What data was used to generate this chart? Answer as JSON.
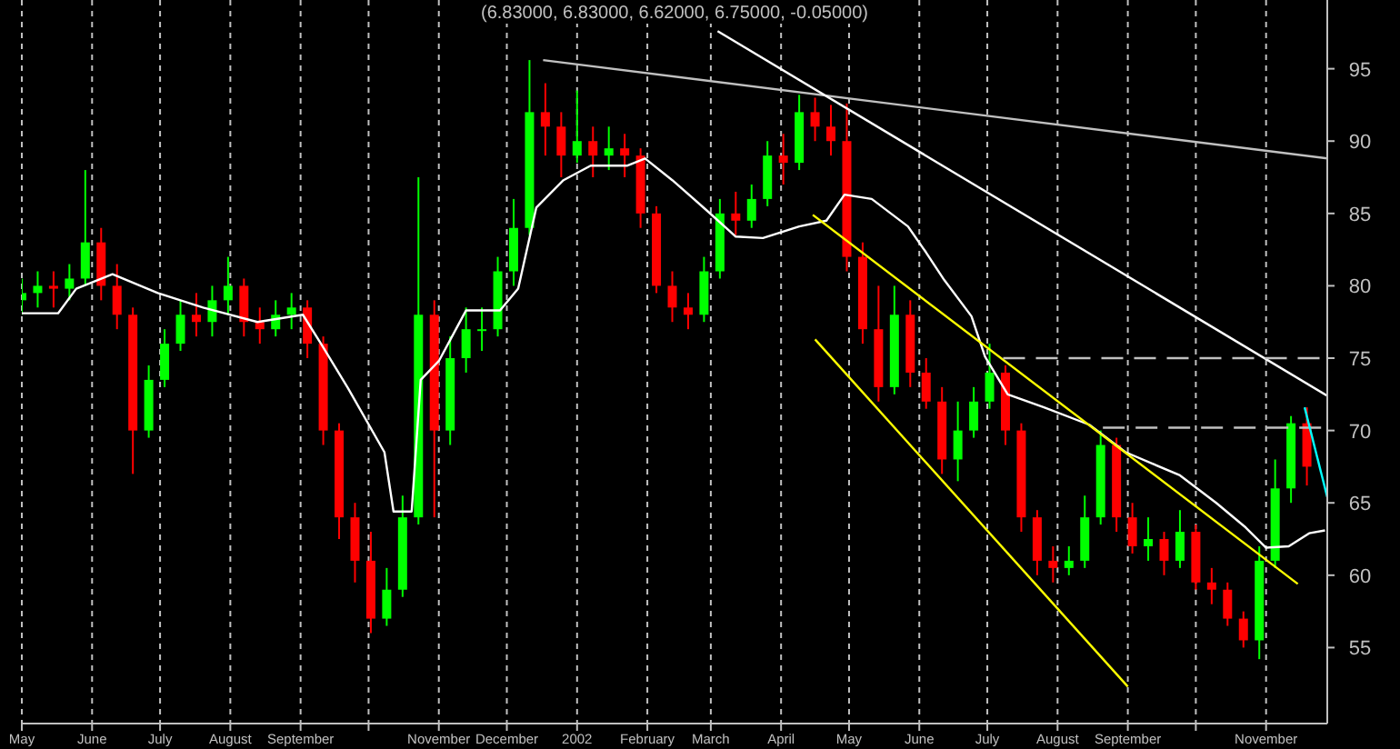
{
  "chart_data": {
    "type": "candlestick",
    "title": "(6.83000, 6.83000, 6.62000, 6.75000, -0.05000)",
    "x": [
      "2001-05-01",
      "2001-05-08",
      "2001-05-15",
      "2001-05-22",
      "2001-05-29",
      "2001-06-05",
      "2001-06-12",
      "2001-06-19",
      "2001-06-26",
      "2001-07-03",
      "2001-07-10",
      "2001-07-17",
      "2001-07-24",
      "2001-07-31",
      "2001-08-07",
      "2001-08-14",
      "2001-08-21",
      "2001-08-28",
      "2001-09-04",
      "2001-09-11",
      "2001-09-18",
      "2001-09-25",
      "2001-10-02",
      "2001-10-09",
      "2001-10-16",
      "2001-10-23",
      "2001-10-30",
      "2001-11-06",
      "2001-11-13",
      "2001-11-20",
      "2001-11-27",
      "2001-12-04",
      "2001-12-11",
      "2001-12-18",
      "2001-12-25",
      "2002-01-01",
      "2002-01-08",
      "2002-01-15",
      "2002-01-22",
      "2002-01-29",
      "2002-02-05",
      "2002-02-12",
      "2002-02-19",
      "2002-02-26",
      "2002-03-05",
      "2002-03-12",
      "2002-03-19",
      "2002-03-26",
      "2002-04-02",
      "2002-04-09",
      "2002-04-16",
      "2002-04-23",
      "2002-04-30",
      "2002-05-07",
      "2002-05-14",
      "2002-05-21",
      "2002-05-28",
      "2002-06-04",
      "2002-06-11",
      "2002-06-18",
      "2002-06-25",
      "2002-07-02",
      "2002-07-09",
      "2002-07-16",
      "2002-07-23",
      "2002-07-30",
      "2002-08-06",
      "2002-08-13",
      "2002-08-20",
      "2002-08-27",
      "2002-09-03",
      "2002-09-10",
      "2002-09-17",
      "2002-09-24",
      "2002-10-01",
      "2002-10-08",
      "2002-10-15",
      "2002-10-22",
      "2002-10-29",
      "2002-11-05",
      "2002-11-12",
      "2002-11-19"
    ],
    "ohlc": [
      [
        79,
        80.5,
        78,
        79.5
      ],
      [
        79.5,
        81,
        78.5,
        80
      ],
      [
        80,
        81,
        78.5,
        79.8
      ],
      [
        79.8,
        81.5,
        79,
        80.5
      ],
      [
        80.5,
        88,
        80,
        83
      ],
      [
        83,
        84,
        79,
        80
      ],
      [
        80,
        81.5,
        77,
        78
      ],
      [
        78,
        78.5,
        67,
        70
      ],
      [
        70,
        74.5,
        69.5,
        73.5
      ],
      [
        73.5,
        77,
        73,
        76
      ],
      [
        76,
        79,
        75.5,
        78
      ],
      [
        78,
        79.5,
        76.5,
        77.5
      ],
      [
        77.5,
        80,
        76.5,
        79
      ],
      [
        79,
        82,
        78,
        80
      ],
      [
        80,
        80.5,
        76.5,
        77.5
      ],
      [
        77.5,
        78.5,
        76,
        77
      ],
      [
        77,
        79,
        76.5,
        78
      ],
      [
        78,
        79.5,
        77,
        78.5
      ],
      [
        78.5,
        79,
        75,
        76
      ],
      [
        76,
        76.5,
        69,
        70
      ],
      [
        70,
        70.5,
        62.5,
        64
      ],
      [
        64,
        65,
        59.5,
        61
      ],
      [
        61,
        63,
        56,
        57
      ],
      [
        57,
        60.5,
        56.5,
        59
      ],
      [
        59,
        65.5,
        58.5,
        64
      ],
      [
        64,
        87.5,
        63.5,
        78
      ],
      [
        78,
        79,
        64,
        70
      ],
      [
        70,
        76.5,
        69,
        75
      ],
      [
        75,
        78.5,
        74,
        77
      ],
      [
        77,
        78.5,
        75.5,
        77
      ],
      [
        77,
        82,
        76.5,
        81
      ],
      [
        81,
        86,
        80,
        84
      ],
      [
        84,
        95.6,
        83.5,
        92
      ],
      [
        92,
        94,
        89,
        91
      ],
      [
        91,
        92,
        87.5,
        89
      ],
      [
        89,
        93.5,
        88.5,
        90
      ],
      [
        90,
        91,
        87.5,
        89
      ],
      [
        89,
        91,
        88,
        89.5
      ],
      [
        89.5,
        90.5,
        87.5,
        89
      ],
      [
        89,
        89.5,
        84,
        85
      ],
      [
        85,
        85.5,
        79.5,
        80
      ],
      [
        80,
        81,
        77.5,
        78.5
      ],
      [
        78.5,
        79.5,
        77,
        78
      ],
      [
        78,
        82,
        77.5,
        81
      ],
      [
        81,
        86,
        80.5,
        85
      ],
      [
        85,
        86.5,
        83.5,
        84.5
      ],
      [
        84.5,
        87,
        84,
        86
      ],
      [
        86,
        90,
        85.5,
        89
      ],
      [
        89,
        90.5,
        87,
        88.5
      ],
      [
        88.5,
        93.2,
        88,
        92
      ],
      [
        92,
        93,
        90,
        91
      ],
      [
        91,
        92.5,
        89,
        90
      ],
      [
        90,
        92.6,
        81,
        82
      ],
      [
        82,
        83,
        76,
        77
      ],
      [
        77,
        80,
        72,
        73
      ],
      [
        73,
        80,
        72.5,
        78
      ],
      [
        78,
        79,
        73,
        74
      ],
      [
        74,
        75,
        71.5,
        72
      ],
      [
        72,
        73,
        67,
        68
      ],
      [
        68,
        72,
        66.5,
        70
      ],
      [
        70,
        73,
        69.5,
        72
      ],
      [
        72,
        76,
        71.5,
        74
      ],
      [
        74,
        74.5,
        69,
        70
      ],
      [
        70,
        70.5,
        63,
        64
      ],
      [
        64,
        64.5,
        60,
        61
      ],
      [
        61,
        62,
        59.5,
        60.5
      ],
      [
        60.5,
        62,
        60,
        61
      ],
      [
        61,
        65.5,
        60.5,
        64
      ],
      [
        64,
        70,
        63.5,
        69
      ],
      [
        69,
        69.5,
        63,
        64
      ],
      [
        64,
        65,
        61.5,
        62
      ],
      [
        62,
        64,
        61,
        62.5
      ],
      [
        62.5,
        63,
        60,
        61
      ],
      [
        61,
        64.5,
        60.5,
        63
      ],
      [
        63,
        63.5,
        59,
        59.5
      ],
      [
        59.5,
        60.5,
        58,
        59
      ],
      [
        59,
        59.5,
        56.5,
        57
      ],
      [
        57,
        57.5,
        55,
        55.5
      ],
      [
        55.5,
        62,
        54.2,
        61
      ],
      [
        61,
        68,
        60.5,
        66
      ],
      [
        66,
        71,
        65,
        70.5
      ],
      [
        70.5,
        71.6,
        66.2,
        67.5
      ]
    ],
    "colors": [
      "#00ff00",
      "#00ff00",
      "#ff0000",
      "#00ff00",
      "#00ff00",
      "#ff0000",
      "#ff0000",
      "#ff0000",
      "#00ff00",
      "#00ff00",
      "#00ff00",
      "#ff0000",
      "#00ff00",
      "#00ff00",
      "#ff0000",
      "#ff0000",
      "#00ff00",
      "#00ff00",
      "#ff0000",
      "#ff0000",
      "#ff0000",
      "#ff0000",
      "#ff0000",
      "#00ff00",
      "#00ff00",
      "#00ff00",
      "#ff0000",
      "#00ff00",
      "#00ff00",
      "#00ff00",
      "#00ff00",
      "#00ff00",
      "#00ff00",
      "#ff0000",
      "#ff0000",
      "#00ff00",
      "#ff0000",
      "#00ff00",
      "#ff0000",
      "#ff0000",
      "#ff0000",
      "#ff0000",
      "#ff0000",
      "#00ff00",
      "#00ff00",
      "#ff0000",
      "#00ff00",
      "#00ff00",
      "#ff0000",
      "#00ff00",
      "#ff0000",
      "#ff0000",
      "#ff0000",
      "#ff0000",
      "#ff0000",
      "#00ff00",
      "#ff0000",
      "#ff0000",
      "#ff0000",
      "#00ff00",
      "#00ff00",
      "#00ff00",
      "#ff0000",
      "#ff0000",
      "#ff0000",
      "#ff0000",
      "#00ff00",
      "#00ff00",
      "#00ff00",
      "#ff0000",
      "#ff0000",
      "#00ff00",
      "#ff0000",
      "#00ff00",
      "#ff0000",
      "#ff0000",
      "#ff0000",
      "#ff0000",
      "#00ff00",
      "#00ff00",
      "#00ff00",
      "#ff0000"
    ],
    "series": [
      {
        "type": "line",
        "color": "#ffffff",
        "x": [
          "2001-05-01",
          "2001-05-17",
          "2001-05-25",
          "2001-06-10",
          "2001-06-30",
          "2001-07-20",
          "2001-08-13",
          "2001-09-02",
          "2001-09-10",
          "2001-09-22",
          "2001-10-08",
          "2001-10-12",
          "2001-10-20",
          "2001-10-24",
          "2001-11-01",
          "2001-11-13",
          "2001-11-28",
          "2001-12-06",
          "2001-12-14",
          "2001-12-26",
          "2002-01-07",
          "2002-01-23",
          "2002-01-31",
          "2002-02-12",
          "2002-02-28",
          "2002-03-12",
          "2002-03-24",
          "2002-04-09",
          "2002-04-21",
          "2002-04-29",
          "2002-05-11",
          "2002-05-27",
          "2002-06-04",
          "2002-06-12",
          "2002-06-24",
          "2002-06-30",
          "2002-07-10",
          "2002-07-26",
          "2002-08-15",
          "2002-08-31",
          "2002-09-24",
          "2002-10-10",
          "2002-10-23",
          "2002-11-01",
          "2002-11-11",
          "2002-11-20",
          "2002-11-27"
        ],
        "values": [
          78.1,
          78.1,
          79.8,
          80.8,
          79.5,
          78.5,
          77.5,
          78,
          76,
          72.9,
          68.5,
          64.4,
          64.4,
          73.5,
          74.8,
          78.3,
          78.3,
          79.8,
          85.4,
          87.3,
          88.3,
          88.3,
          88.8,
          87.3,
          85.1,
          83.4,
          83.3,
          84.1,
          84.5,
          86.3,
          86,
          84.1,
          82.3,
          80.4,
          77.9,
          75.1,
          72.5,
          71.6,
          70.4,
          68.5,
          66.9,
          65,
          63.3,
          61.9,
          62,
          62.9,
          63.1
        ]
      },
      {
        "type": "line",
        "color": "#c0c0c0",
        "x": [
          "2001-12-17",
          "2002-11-28"
        ],
        "values": [
          95.6,
          88.8
        ]
      },
      {
        "type": "line",
        "color": "#ffffff",
        "x": [
          "2002-03-04",
          "2002-11-28"
        ],
        "values": [
          97.6,
          72.4
        ]
      },
      {
        "type": "line",
        "color": "#ffff00",
        "x": [
          "2002-04-15",
          "2002-11-15"
        ],
        "values": [
          84.9,
          59.4
        ]
      },
      {
        "type": "line",
        "color": "#ffff00",
        "x": [
          "2002-04-16",
          "2002-09-01"
        ],
        "values": [
          76.3,
          52.3
        ]
      },
      {
        "type": "line",
        "color": "#c0c0c0",
        "line_style": "dashed",
        "x": [
          "2002-07-08",
          "2002-11-28"
        ],
        "values": [
          75,
          75
        ]
      },
      {
        "type": "line",
        "color": "#c0c0c0",
        "line_style": "dashed",
        "x": [
          "2002-08-21",
          "2002-11-28"
        ],
        "values": [
          70.2,
          70.2
        ]
      },
      {
        "type": "line",
        "color": "#00ffff",
        "x": [
          "2002-11-18",
          "2002-11-28"
        ],
        "values": [
          71.6,
          65.4
        ]
      }
    ],
    "xlim": [
      "2001-05-01",
      "2002-11-28"
    ],
    "xticks": [
      {
        "value": "2001-05-01",
        "label": "May"
      },
      {
        "value": "2001-06-01",
        "label": "June"
      },
      {
        "value": "2001-07-01",
        "label": "July"
      },
      {
        "value": "2001-08-01",
        "label": "August"
      },
      {
        "value": "2001-09-01",
        "label": "September"
      },
      {
        "value": "2001-10-01",
        "label": null
      },
      {
        "value": "2001-11-01",
        "label": "November"
      },
      {
        "value": "2001-12-01",
        "label": "December"
      },
      {
        "value": "2002-01-01",
        "label": "2002"
      },
      {
        "value": "2002-02-01",
        "label": "February"
      },
      {
        "value": "2002-03-01",
        "label": "March"
      },
      {
        "value": "2002-04-01",
        "label": "April"
      },
      {
        "value": "2002-05-01",
        "label": "May"
      },
      {
        "value": "2002-06-01",
        "label": "June"
      },
      {
        "value": "2002-07-01",
        "label": "July"
      },
      {
        "value": "2002-08-01",
        "label": "August"
      },
      {
        "value": "2002-09-01",
        "label": "September"
      },
      {
        "value": "2002-10-01",
        "label": null
      },
      {
        "value": "2002-11-01",
        "label": "November"
      }
    ],
    "ylim": [
      49.75,
      99.75
    ],
    "yticks": [
      55,
      60,
      65,
      70,
      75,
      80,
      85,
      90,
      95
    ],
    "grid": "x"
  }
}
